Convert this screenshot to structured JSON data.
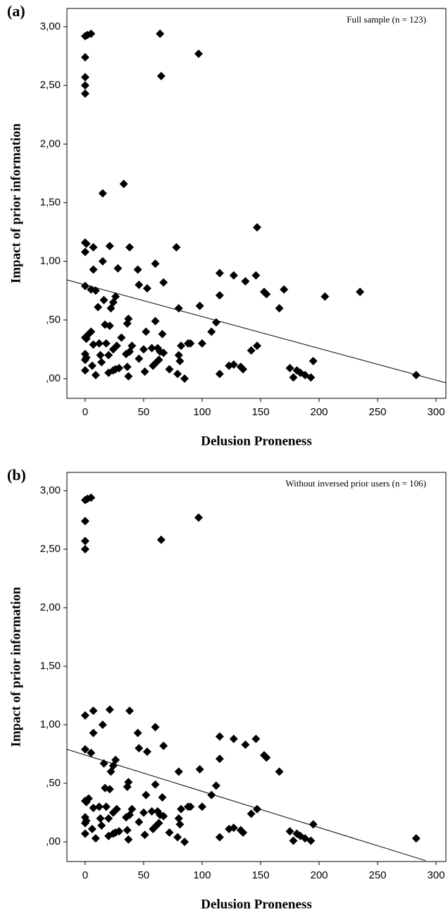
{
  "chart_data": [
    {
      "type": "scatter",
      "label": "(a)",
      "annotation": "Full sample (n = 123)",
      "xlabel": "Delusion Proneness",
      "ylabel": "Impact of prior information",
      "marker": "diamond",
      "color": "#000000",
      "x": [
        0,
        2,
        5,
        0,
        0,
        0,
        0,
        64,
        65,
        97,
        15,
        33,
        147,
        0,
        1,
        0,
        7,
        21,
        38,
        78,
        15,
        60,
        7,
        28,
        45,
        115,
        127,
        146,
        137,
        67,
        46,
        53,
        0,
        5,
        9,
        153,
        155,
        170,
        235,
        205,
        115,
        26,
        24,
        16,
        22,
        11,
        80,
        98,
        166,
        60,
        37,
        36,
        17,
        21,
        0,
        3,
        5,
        66,
        52,
        31,
        112,
        108,
        1,
        12,
        18,
        7,
        27,
        40,
        50,
        57,
        62,
        64,
        67,
        82,
        88,
        90,
        100,
        147,
        142,
        0,
        1,
        0,
        13,
        20,
        24,
        35,
        38,
        46,
        60,
        63,
        80,
        81,
        14,
        20,
        24,
        26,
        29,
        36,
        0,
        6,
        9,
        37,
        51,
        58,
        72,
        79,
        85,
        115,
        123,
        127,
        133,
        135,
        175,
        178,
        181,
        184,
        188,
        193,
        195,
        283
      ],
      "values": [
        2.92,
        2.93,
        2.94,
        2.74,
        2.57,
        2.5,
        2.43,
        2.94,
        2.58,
        2.77,
        1.58,
        1.66,
        1.29,
        1.16,
        1.15,
        1.08,
        1.12,
        1.13,
        1.12,
        1.12,
        1.0,
        0.98,
        0.93,
        0.94,
        0.93,
        0.9,
        0.88,
        0.88,
        0.83,
        0.82,
        0.8,
        0.77,
        0.79,
        0.76,
        0.75,
        0.74,
        0.72,
        0.76,
        0.74,
        0.7,
        0.71,
        0.7,
        0.65,
        0.67,
        0.6,
        0.61,
        0.6,
        0.62,
        0.6,
        0.49,
        0.51,
        0.47,
        0.46,
        0.45,
        0.35,
        0.38,
        0.4,
        0.38,
        0.4,
        0.35,
        0.48,
        0.4,
        0.34,
        0.3,
        0.3,
        0.29,
        0.28,
        0.28,
        0.25,
        0.26,
        0.26,
        0.23,
        0.22,
        0.28,
        0.3,
        0.3,
        0.3,
        0.28,
        0.24,
        0.21,
        0.18,
        0.16,
        0.2,
        0.2,
        0.25,
        0.21,
        0.23,
        0.17,
        0.13,
        0.16,
        0.2,
        0.15,
        0.14,
        0.05,
        0.07,
        0.08,
        0.09,
        0.1,
        0.07,
        0.11,
        0.03,
        0.02,
        0.06,
        0.11,
        0.08,
        0.04,
        0.0,
        0.04,
        0.11,
        0.12,
        0.1,
        0.08,
        0.09,
        0.01,
        0.07,
        0.05,
        0.03,
        0.01,
        0.15,
        0.03
      ],
      "trend_line": {
        "x": [
          -15.6,
          308.4
        ],
        "y": [
          0.842,
          -0.036
        ]
      },
      "xlim": [
        -15.6,
        308.4
      ],
      "ylim": [
        -0.168,
        3.156
      ],
      "xticks": [
        0,
        50,
        100,
        150,
        200,
        250,
        300
      ],
      "yticks": [
        {
          "value": 0,
          "label": ",00"
        },
        {
          "value": 0.5,
          "label": ",50"
        },
        {
          "value": 1,
          "label": "1,00"
        },
        {
          "value": 1.5,
          "label": "1,50"
        },
        {
          "value": 2,
          "label": "2,00"
        },
        {
          "value": 2.5,
          "label": "2,50"
        },
        {
          "value": 3,
          "label": "3,00"
        }
      ]
    },
    {
      "type": "scatter",
      "label": "(b)",
      "annotation": "Without inversed prior users (n = 106)",
      "xlabel": "Delusion Proneness",
      "ylabel": "Impact of prior information",
      "marker": "diamond",
      "color": "#000000",
      "x": [
        0,
        2,
        5,
        0,
        0,
        0,
        65,
        97,
        0,
        7,
        21,
        38,
        15,
        60,
        7,
        45,
        115,
        127,
        146,
        137,
        67,
        46,
        53,
        0,
        5,
        153,
        155,
        115,
        26,
        24,
        16,
        22,
        80,
        98,
        166,
        60,
        37,
        36,
        17,
        21,
        0,
        3,
        66,
        52,
        112,
        108,
        1,
        12,
        18,
        7,
        27,
        40,
        50,
        57,
        62,
        64,
        67,
        82,
        88,
        90,
        100,
        147,
        142,
        0,
        1,
        0,
        13,
        20,
        24,
        35,
        38,
        46,
        60,
        63,
        80,
        81,
        14,
        20,
        24,
        26,
        29,
        36,
        0,
        6,
        9,
        37,
        51,
        58,
        72,
        79,
        85,
        115,
        123,
        127,
        133,
        135,
        175,
        178,
        181,
        184,
        188,
        193,
        195,
        283
      ],
      "values": [
        2.92,
        2.93,
        2.94,
        2.74,
        2.57,
        2.5,
        2.58,
        2.77,
        1.08,
        1.12,
        1.13,
        1.12,
        1.0,
        0.98,
        0.93,
        0.93,
        0.9,
        0.88,
        0.88,
        0.83,
        0.82,
        0.8,
        0.77,
        0.79,
        0.76,
        0.74,
        0.72,
        0.71,
        0.7,
        0.65,
        0.67,
        0.6,
        0.6,
        0.62,
        0.6,
        0.49,
        0.51,
        0.47,
        0.46,
        0.45,
        0.35,
        0.37,
        0.38,
        0.4,
        0.48,
        0.4,
        0.34,
        0.3,
        0.3,
        0.29,
        0.28,
        0.28,
        0.25,
        0.26,
        0.26,
        0.23,
        0.22,
        0.28,
        0.3,
        0.3,
        0.3,
        0.28,
        0.24,
        0.21,
        0.18,
        0.16,
        0.2,
        0.2,
        0.25,
        0.21,
        0.23,
        0.17,
        0.13,
        0.16,
        0.2,
        0.15,
        0.14,
        0.05,
        0.07,
        0.08,
        0.09,
        0.1,
        0.07,
        0.11,
        0.03,
        0.02,
        0.06,
        0.11,
        0.08,
        0.04,
        0.0,
        0.04,
        0.11,
        0.12,
        0.1,
        0.08,
        0.09,
        0.01,
        0.07,
        0.05,
        0.03,
        0.01,
        0.15,
        0.03
      ],
      "trend_line": {
        "x": [
          -15.6,
          291
        ],
        "y": [
          0.79,
          -0.16
        ]
      },
      "xlim": [
        -15.6,
        308.4
      ],
      "ylim": [
        -0.168,
        3.156
      ],
      "xticks": [
        0,
        50,
        100,
        150,
        200,
        250,
        300
      ],
      "yticks": [
        {
          "value": 0,
          "label": ",00"
        },
        {
          "value": 0.5,
          "label": ",50"
        },
        {
          "value": 1,
          "label": "1,00"
        },
        {
          "value": 1.5,
          "label": "1,50"
        },
        {
          "value": 2,
          "label": "2,00"
        },
        {
          "value": 2.5,
          "label": "2,50"
        },
        {
          "value": 3,
          "label": "3,00"
        }
      ]
    }
  ]
}
